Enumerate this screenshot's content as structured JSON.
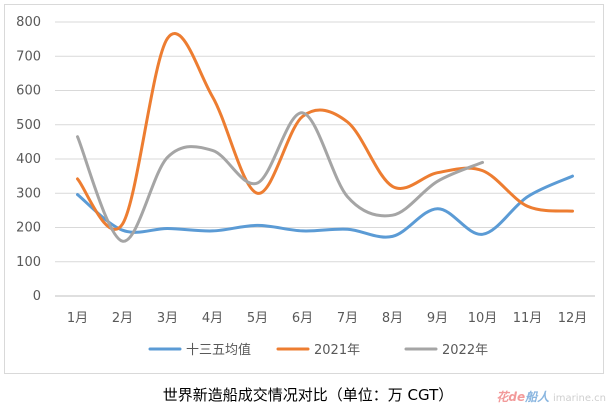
{
  "chart_data": {
    "type": "line",
    "title": "",
    "xlabel": "",
    "ylabel": "",
    "categories": [
      "1月",
      "2月",
      "3月",
      "4月",
      "5月",
      "6月",
      "7月",
      "8月",
      "9月",
      "10月",
      "11月",
      "12月"
    ],
    "ylim": [
      0,
      800
    ],
    "yticks": [
      0,
      100,
      200,
      300,
      400,
      500,
      600,
      700,
      800
    ],
    "grid": true,
    "legend_position": "bottom",
    "series": [
      {
        "name": "十三五均值",
        "color": "#5b9bd5",
        "values": [
          296,
          192,
          197,
          190,
          206,
          190,
          195,
          174,
          255,
          180,
          290,
          350
        ]
      },
      {
        "name": "2021年",
        "color": "#ed7d31",
        "values": [
          342,
          210,
          752,
          582,
          300,
          524,
          508,
          320,
          360,
          366,
          262,
          248
        ]
      },
      {
        "name": "2022年",
        "color": "#a5a5a5",
        "values": [
          465,
          160,
          405,
          425,
          330,
          535,
          290,
          236,
          335,
          390,
          null,
          null
        ]
      }
    ]
  },
  "caption": "世界新造船成交情况对比（单位：万 CGT）",
  "watermark": {
    "part1": "花de",
    "part2": "船人",
    "part3": "imarine.cn"
  }
}
